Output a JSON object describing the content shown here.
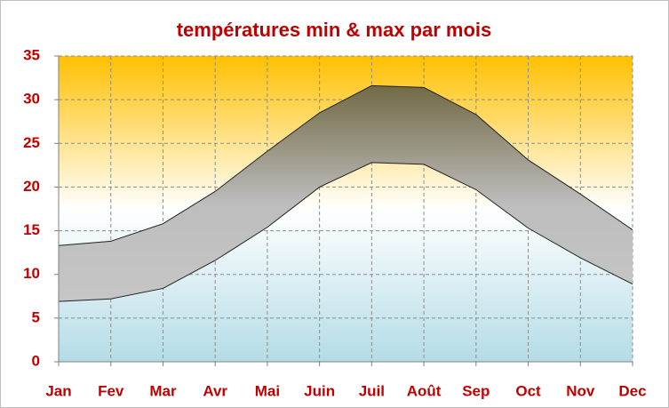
{
  "chart_data": {
    "type": "range-area",
    "title": "températures min & max par mois",
    "categories": [
      "Jan",
      "Fev",
      "Mar",
      "Avr",
      "Mai",
      "Juin",
      "Juil",
      "Août",
      "Sep",
      "Oct",
      "Nov",
      "Dec"
    ],
    "series": [
      {
        "values": [
          13.3,
          13.8,
          15.8,
          19.5,
          24.1,
          28.5,
          31.6,
          31.4,
          28.3,
          23.1,
          19.2,
          15.1
        ]
      },
      {
        "values": [
          6.9,
          7.2,
          8.4,
          11.6,
          15.4,
          20.0,
          22.8,
          22.6,
          19.7,
          15.3,
          11.9,
          8.9
        ]
      }
    ],
    "ylim": [
      0,
      35
    ],
    "yticks": [
      0,
      5,
      10,
      15,
      20,
      25,
      30,
      35
    ],
    "grid": true
  }
}
